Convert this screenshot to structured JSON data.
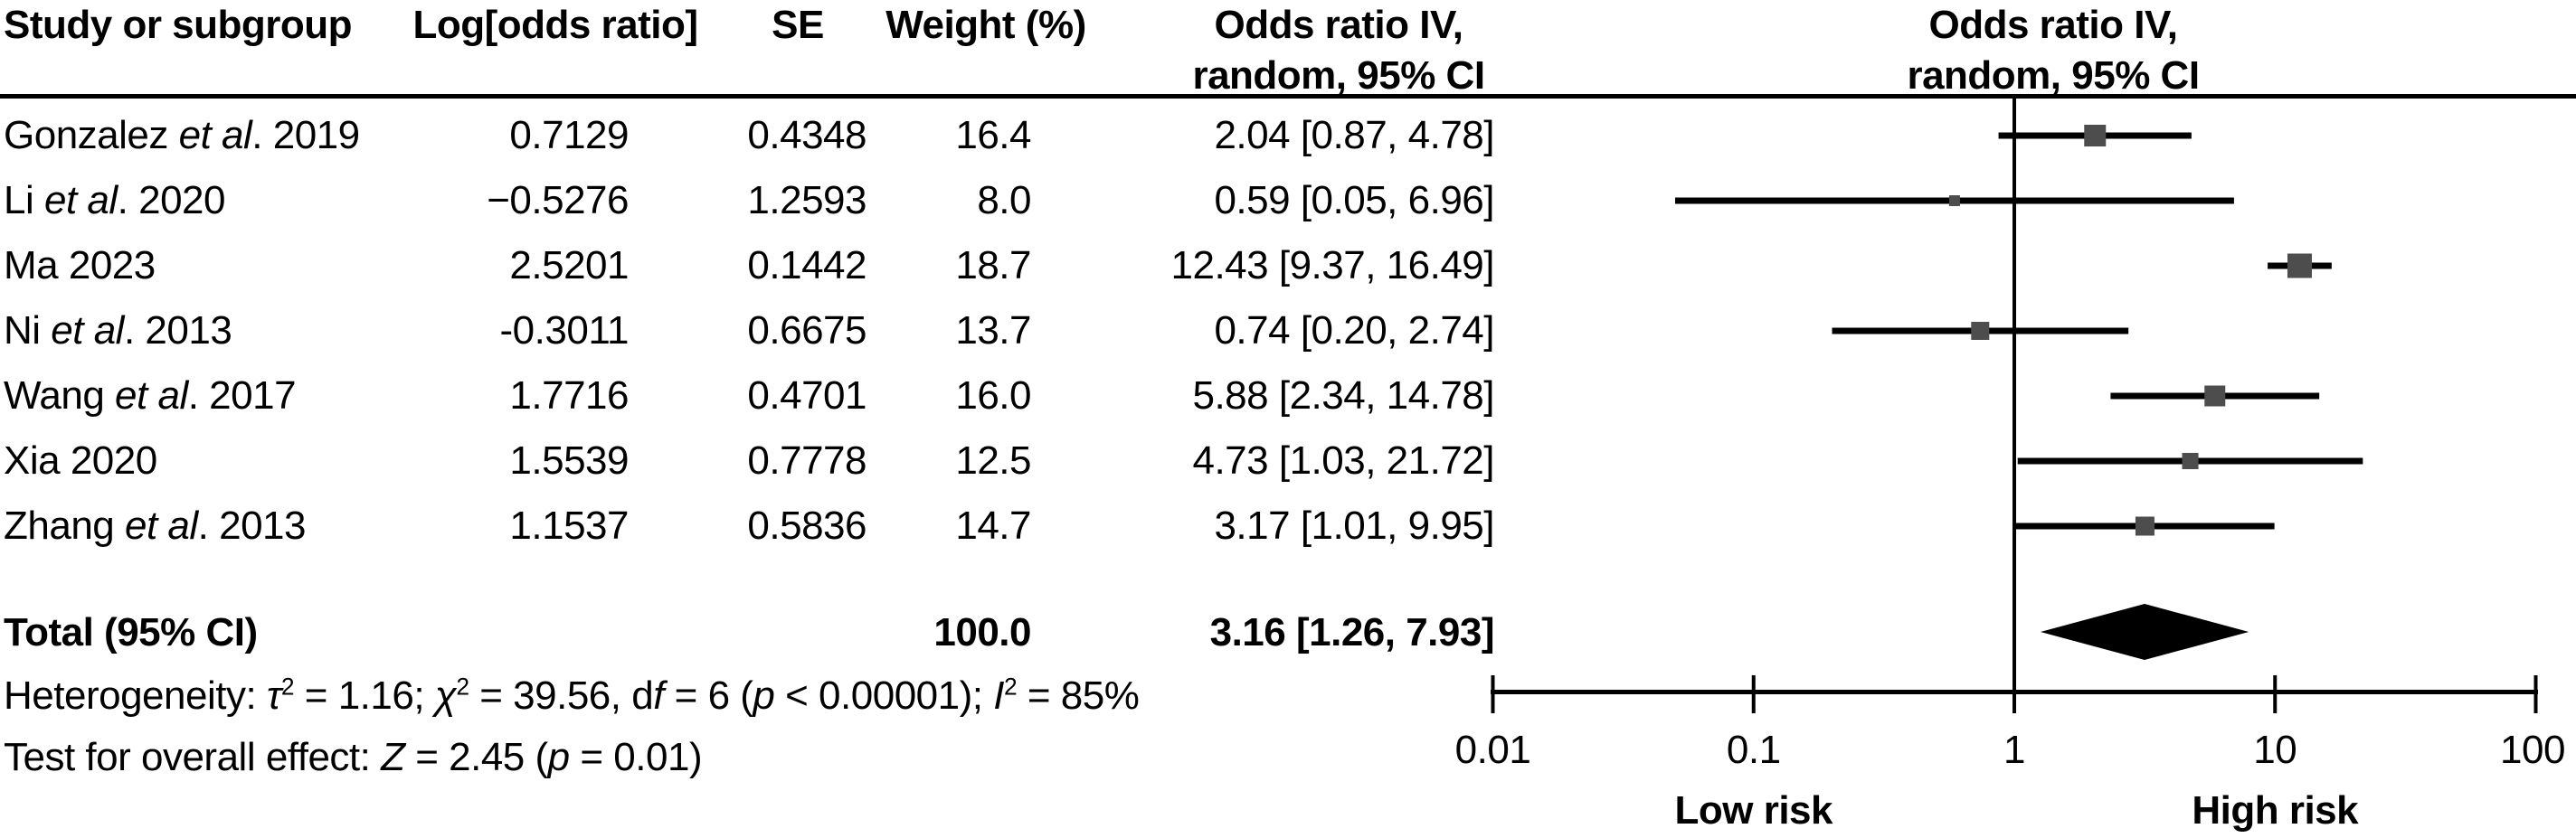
{
  "header": {
    "study": "Study or subgroup",
    "log_or": "Log[odds ratio]",
    "se": "SE",
    "weight": "Weight (%)",
    "or_col_line1": "Odds ratio IV,",
    "or_col_line2": "random, 95% CI",
    "plot_col_line1": "Odds ratio IV,",
    "plot_col_line2": "random, 95% CI"
  },
  "rows": [
    {
      "study_segments": [
        {
          "t": "Gonzalez "
        },
        {
          "t": "et al",
          "i": true
        },
        {
          "t": ". 2019"
        }
      ],
      "log_or": "0.7129",
      "se": "0.4348",
      "weight": "16.4",
      "or_ci": "2.04 [0.87, 4.78]"
    },
    {
      "study_segments": [
        {
          "t": "Li "
        },
        {
          "t": "et al",
          "i": true
        },
        {
          "t": ". 2020"
        }
      ],
      "log_or": "−0.5276",
      "se": "1.2593",
      "weight": "8.0",
      "or_ci": "0.59 [0.05, 6.96]"
    },
    {
      "study_segments": [
        {
          "t": "Ma 2023"
        }
      ],
      "log_or": "2.5201",
      "se": "0.1442",
      "weight": "18.7",
      "or_ci": "12.43 [9.37, 16.49]"
    },
    {
      "study_segments": [
        {
          "t": "Ni "
        },
        {
          "t": "et al",
          "i": true
        },
        {
          "t": ". 2013"
        }
      ],
      "log_or": "-0.3011",
      "se": "0.6675",
      "weight": "13.7",
      "or_ci": "0.74 [0.20, 2.74]"
    },
    {
      "study_segments": [
        {
          "t": "Wang "
        },
        {
          "t": "et al",
          "i": true
        },
        {
          "t": ". 2017"
        }
      ],
      "log_or": "1.7716",
      "se": "0.4701",
      "weight": "16.0",
      "or_ci": "5.88 [2.34, 14.78]"
    },
    {
      "study_segments": [
        {
          "t": "Xia 2020"
        }
      ],
      "log_or": "1.5539",
      "se": "0.7778",
      "weight": "12.5",
      "or_ci": "4.73 [1.03, 21.72]"
    },
    {
      "study_segments": [
        {
          "t": "Zhang "
        },
        {
          "t": "et al",
          "i": true
        },
        {
          "t": ". 2013"
        }
      ],
      "log_or": "1.1537",
      "se": "0.5836",
      "weight": "14.7",
      "or_ci": "3.17 [1.01, 9.95]"
    }
  ],
  "total": {
    "label": "Total (95% CI)",
    "weight": "100.0",
    "or_ci": "3.16 [1.26, 7.93]"
  },
  "footnotes": {
    "heterogeneity_segments": [
      {
        "t": "Heterogeneity: "
      },
      {
        "t": "τ",
        "i": true
      },
      {
        "t": "2",
        "sup": true
      },
      {
        "t": " = 1.16; "
      },
      {
        "t": "χ",
        "i": true
      },
      {
        "t": "2",
        "sup": true
      },
      {
        "t": " = 39.56, d"
      },
      {
        "t": "f",
        "i": true
      },
      {
        "t": " = 6 ("
      },
      {
        "t": "p",
        "i": true
      },
      {
        "t": " < 0.00001); "
      },
      {
        "t": "I",
        "i": true
      },
      {
        "t": "2",
        "sup": true
      },
      {
        "t": " = 85%"
      }
    ],
    "overall_effect_segments": [
      {
        "t": "Test for overall effect: "
      },
      {
        "t": "Z",
        "i": true
      },
      {
        "t": " = 2.45 ("
      },
      {
        "t": "p",
        "i": true
      },
      {
        "t": " = 0.01)"
      }
    ]
  },
  "axis": {
    "tick_labels": [
      "0.01",
      "0.1",
      "1",
      "10",
      "100"
    ],
    "low_label": "Low risk",
    "high_label": "High risk"
  },
  "colors": {
    "text": "#000000",
    "line": "#000000",
    "square": "#4d4d4d",
    "diamond": "#000000"
  },
  "chart_data": {
    "type": "forest",
    "effect_measure": "Odds ratio IV, random, 95% CI",
    "x_scale": "log10",
    "x_range": [
      0.01,
      100
    ],
    "x_ticks": [
      0.01,
      0.1,
      1,
      10,
      100
    ],
    "null_line": 1,
    "direction_labels": {
      "low": "Low risk",
      "high": "High risk"
    },
    "studies": [
      {
        "label": "Gonzalez et al. 2019",
        "log_odds_ratio": 0.7129,
        "se": 0.4348,
        "weight_pct": 16.4,
        "or": 2.04,
        "ci_low": 0.87,
        "ci_high": 4.78
      },
      {
        "label": "Li et al. 2020",
        "log_odds_ratio": -0.5276,
        "se": 1.2593,
        "weight_pct": 8.0,
        "or": 0.59,
        "ci_low": 0.05,
        "ci_high": 6.96
      },
      {
        "label": "Ma 2023",
        "log_odds_ratio": 2.5201,
        "se": 0.1442,
        "weight_pct": 18.7,
        "or": 12.43,
        "ci_low": 9.37,
        "ci_high": 16.49
      },
      {
        "label": "Ni et al. 2013",
        "log_odds_ratio": -0.3011,
        "se": 0.6675,
        "weight_pct": 13.7,
        "or": 0.74,
        "ci_low": 0.2,
        "ci_high": 2.74
      },
      {
        "label": "Wang et al. 2017",
        "log_odds_ratio": 1.7716,
        "se": 0.4701,
        "weight_pct": 16.0,
        "or": 5.88,
        "ci_low": 2.34,
        "ci_high": 14.78
      },
      {
        "label": "Xia 2020",
        "log_odds_ratio": 1.5539,
        "se": 0.7778,
        "weight_pct": 12.5,
        "or": 4.73,
        "ci_low": 1.03,
        "ci_high": 21.72
      },
      {
        "label": "Zhang et al. 2013",
        "log_odds_ratio": 1.1537,
        "se": 0.5836,
        "weight_pct": 14.7,
        "or": 3.17,
        "ci_low": 1.01,
        "ci_high": 9.95
      }
    ],
    "total": {
      "label": "Total (95% CI)",
      "weight_pct": 100.0,
      "or": 3.16,
      "ci_low": 1.26,
      "ci_high": 7.93
    },
    "heterogeneity": {
      "tau2": 1.16,
      "chi2": 39.56,
      "df": 6,
      "p": "< 0.00001",
      "I2_pct": 85
    },
    "overall_effect": {
      "Z": 2.45,
      "p": "= 0.01"
    }
  }
}
